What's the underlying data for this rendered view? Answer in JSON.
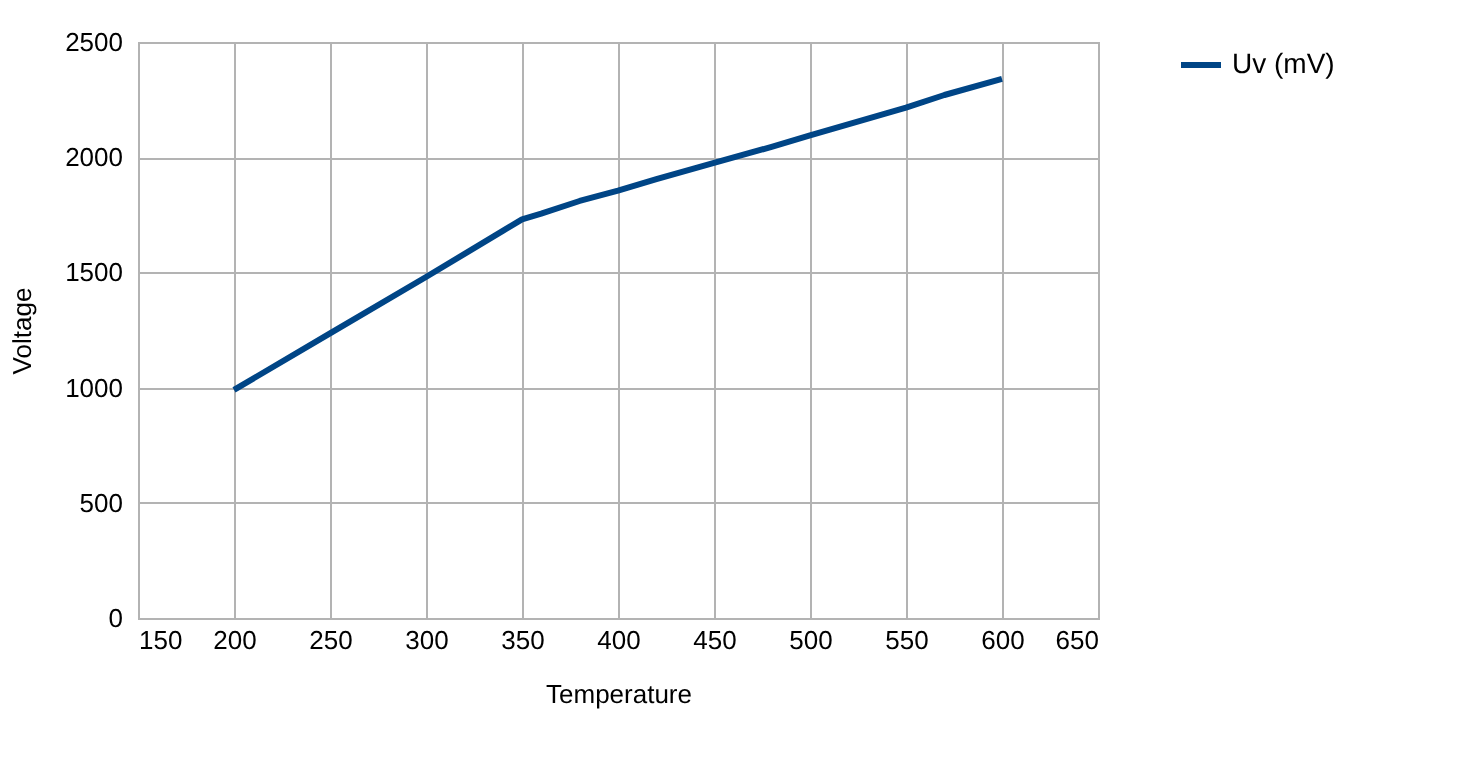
{
  "chart_data": {
    "type": "line",
    "xlabel": "Temperature",
    "ylabel": "Voltage",
    "x": [
      200,
      250,
      300,
      340,
      350,
      360,
      380,
      400,
      420,
      450,
      480,
      500,
      550,
      570,
      600
    ],
    "series": [
      {
        "name": "Uv (mV)",
        "color": "#004586",
        "values": [
          990,
          1235,
          1480,
          1680,
          1730,
          1755,
          1810,
          1855,
          1905,
          1975,
          2045,
          2095,
          2215,
          2270,
          2340
        ]
      }
    ],
    "xlim": [
      150,
      650
    ],
    "xticks": [
      150,
      200,
      250,
      300,
      350,
      400,
      450,
      500,
      550,
      600,
      650
    ],
    "ylim": [
      0,
      2500
    ],
    "yticks": [
      0,
      500,
      1000,
      1500,
      2000,
      2500
    ],
    "grid": true,
    "legend": "right",
    "marker": "none",
    "line_style": "solid"
  }
}
